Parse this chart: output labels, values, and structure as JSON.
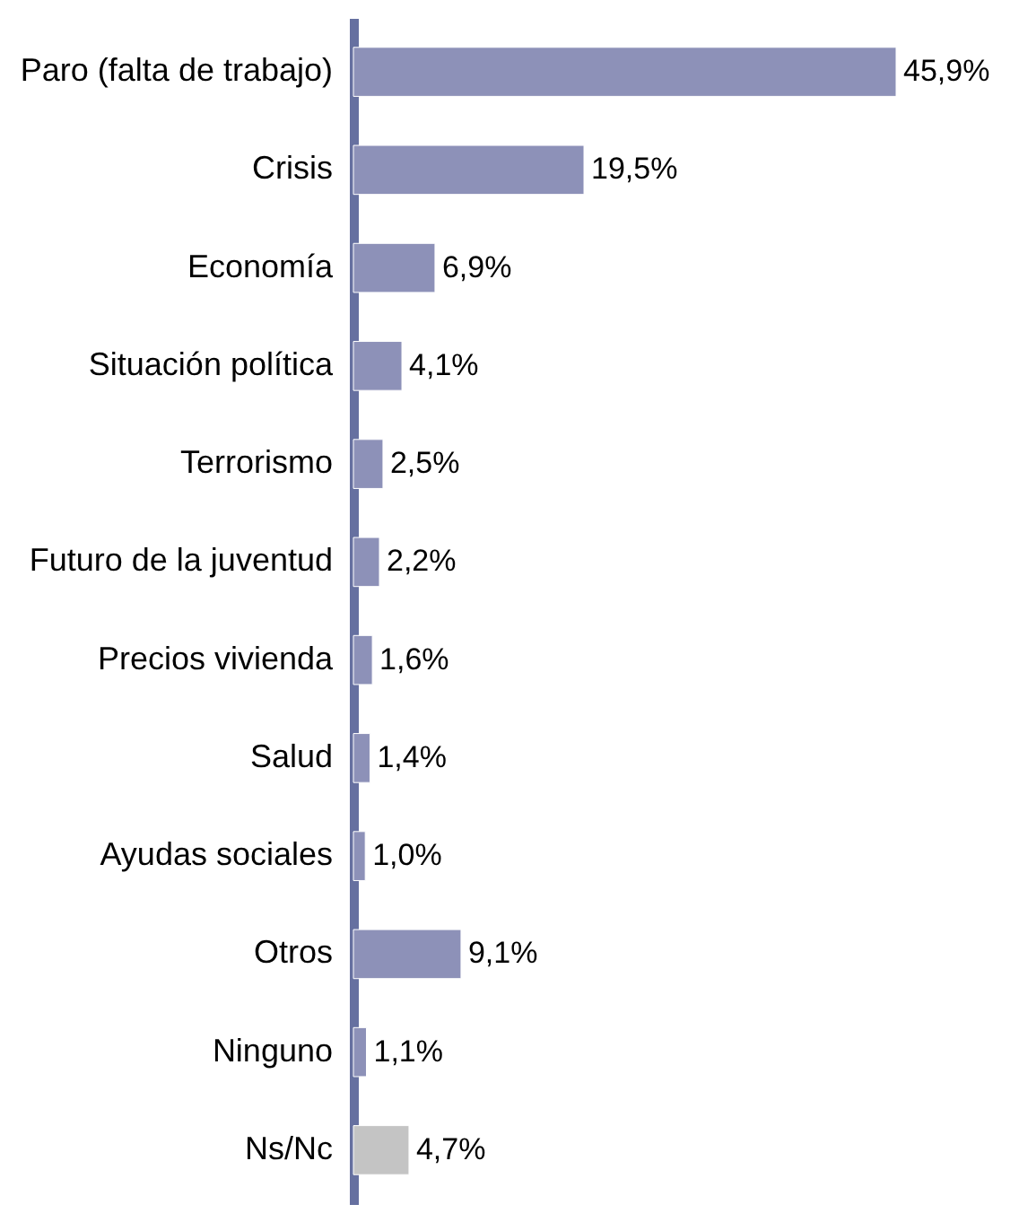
{
  "chart_data": {
    "type": "bar",
    "orientation": "horizontal",
    "categories": [
      "Paro (falta de trabajo)",
      "Crisis",
      "Economía",
      "Situación política",
      "Terrorismo",
      "Futuro de la juventud",
      "Precios vivienda",
      "Salud",
      "Ayudas sociales",
      "Otros",
      "Ninguno",
      "Ns/Nc"
    ],
    "values": [
      45.9,
      19.5,
      6.9,
      4.1,
      2.5,
      2.2,
      1.6,
      1.4,
      1.0,
      9.1,
      1.1,
      4.7
    ],
    "value_labels": [
      "45,9%",
      "19,5%",
      "6,9%",
      "4,1%",
      "2,5%",
      "2,2%",
      "1,6%",
      "1,4%",
      "1,0%",
      "9,1%",
      "1,1%",
      "4,7%"
    ],
    "colors": [
      "#8d91b8",
      "#8d91b8",
      "#8d91b8",
      "#8d91b8",
      "#8d91b8",
      "#8d91b8",
      "#8d91b8",
      "#8d91b8",
      "#8d91b8",
      "#8d91b8",
      "#8d91b8",
      "#c4c4c4"
    ],
    "grid": false
  }
}
